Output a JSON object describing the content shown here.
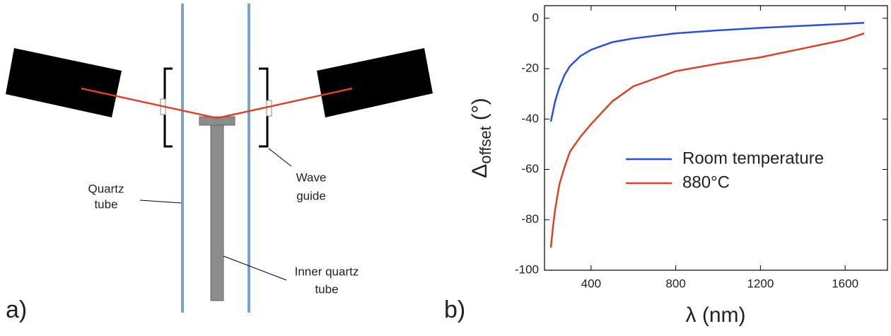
{
  "diagram": {
    "panel_label": "a)",
    "quartz_tube": [
      "Quartz",
      "tube"
    ],
    "wave_guide": [
      "Wave",
      "guide"
    ],
    "inner_quartz_tube": [
      "Inner quartz",
      "tube"
    ]
  },
  "chart_data": {
    "type": "line",
    "panel_label": "b)",
    "xlabel": "λ (nm)",
    "ylabel": [
      "Δ",
      "offset",
      "(°)"
    ],
    "x": [
      210,
      220,
      230,
      250,
      275,
      300,
      350,
      400,
      500,
      600,
      800,
      1000,
      1200,
      1400,
      1600,
      1690
    ],
    "series": [
      {
        "name": "Room temperature",
        "color": "#2a4fe0",
        "values": [
          -41,
          -37,
          -33,
          -27.5,
          -22.5,
          -19,
          -15,
          -12.5,
          -9.5,
          -8,
          -6,
          -4.8,
          -3.8,
          -3,
          -2.2,
          -1.8
        ]
      },
      {
        "name": "880°C",
        "color": "#e0402a",
        "values": [
          -91,
          -83,
          -76,
          -66,
          -59,
          -53,
          -47,
          -42,
          -33,
          -27,
          -21,
          -18,
          -15.5,
          -12,
          -8.5,
          -6
        ]
      }
    ],
    "xlim": [
      180,
      1800
    ],
    "ylim": [
      -100,
      5
    ],
    "xticks": [
      400,
      800,
      1200,
      1600
    ],
    "yticks": [
      0,
      -20,
      -40,
      -60,
      -80,
      -100
    ],
    "legend": "lower-right"
  }
}
